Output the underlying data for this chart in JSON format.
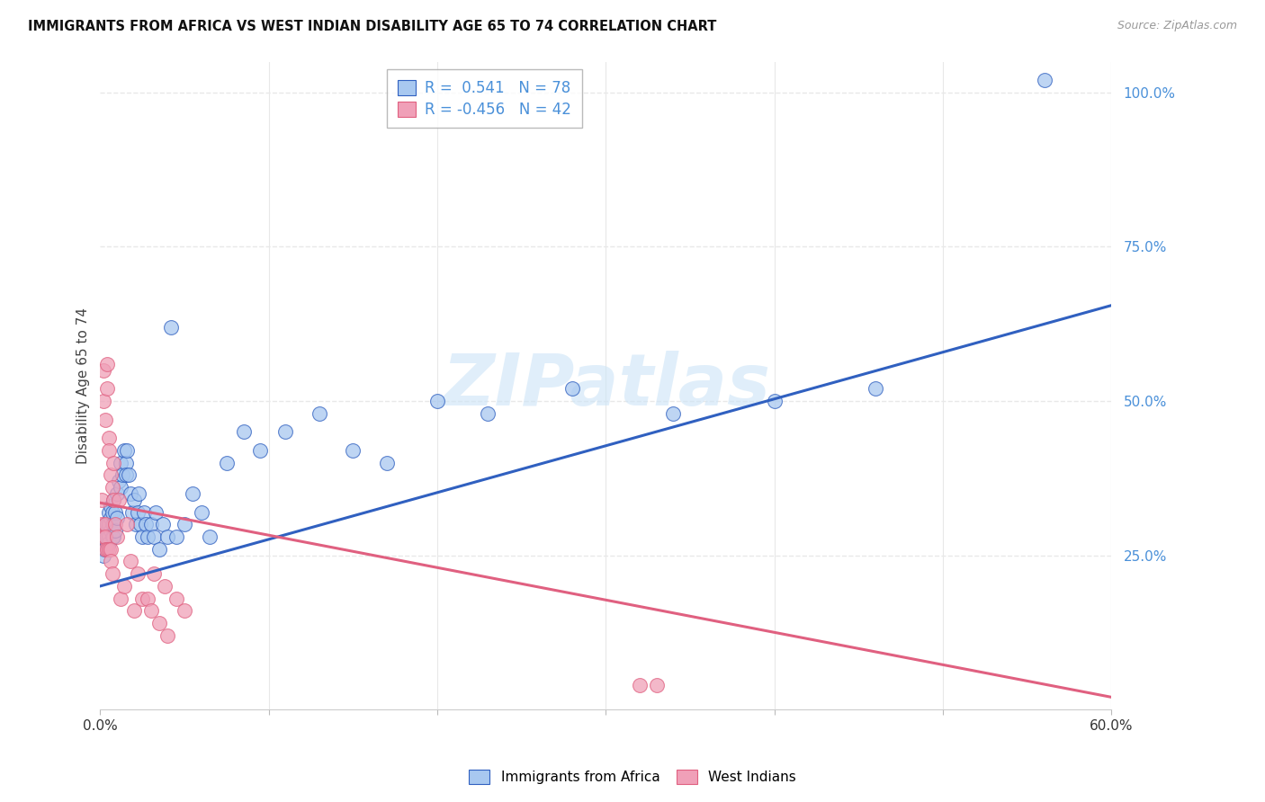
{
  "title": "IMMIGRANTS FROM AFRICA VS WEST INDIAN DISABILITY AGE 65 TO 74 CORRELATION CHART",
  "source": "Source: ZipAtlas.com",
  "ylabel": "Disability Age 65 to 74",
  "xlim": [
    0.0,
    0.6
  ],
  "ylim": [
    0.0,
    1.05
  ],
  "xticks": [
    0.0,
    0.1,
    0.2,
    0.3,
    0.4,
    0.5,
    0.6
  ],
  "xticklabels": [
    "0.0%",
    "",
    "",
    "",
    "",
    "",
    "60.0%"
  ],
  "yticks_right": [
    0.25,
    0.5,
    0.75,
    1.0
  ],
  "ytick_right_labels": [
    "25.0%",
    "50.0%",
    "75.0%",
    "100.0%"
  ],
  "blue_color": "#a8c8f0",
  "pink_color": "#f0a0b8",
  "blue_line_color": "#3060c0",
  "pink_line_color": "#e06080",
  "legend_blue_R": "0.541",
  "legend_blue_N": "78",
  "legend_pink_R": "-0.456",
  "legend_pink_N": "42",
  "legend_blue_label": "Immigrants from Africa",
  "legend_pink_label": "West Indians",
  "watermark_text": "ZIPatlas",
  "blue_scatter_x": [
    0.001,
    0.001,
    0.002,
    0.002,
    0.002,
    0.002,
    0.003,
    0.003,
    0.003,
    0.003,
    0.003,
    0.004,
    0.004,
    0.004,
    0.004,
    0.005,
    0.005,
    0.005,
    0.005,
    0.006,
    0.006,
    0.006,
    0.007,
    0.007,
    0.007,
    0.008,
    0.008,
    0.008,
    0.009,
    0.009,
    0.01,
    0.01,
    0.011,
    0.012,
    0.012,
    0.013,
    0.014,
    0.015,
    0.015,
    0.016,
    0.017,
    0.018,
    0.019,
    0.02,
    0.021,
    0.022,
    0.023,
    0.024,
    0.025,
    0.026,
    0.027,
    0.028,
    0.03,
    0.032,
    0.033,
    0.035,
    0.037,
    0.04,
    0.042,
    0.045,
    0.05,
    0.055,
    0.06,
    0.065,
    0.075,
    0.085,
    0.095,
    0.11,
    0.13,
    0.15,
    0.17,
    0.2,
    0.23,
    0.28,
    0.34,
    0.4,
    0.46,
    0.56
  ],
  "blue_scatter_y": [
    0.28,
    0.27,
    0.26,
    0.28,
    0.27,
    0.25,
    0.28,
    0.27,
    0.29,
    0.3,
    0.26,
    0.29,
    0.27,
    0.3,
    0.28,
    0.3,
    0.28,
    0.32,
    0.27,
    0.31,
    0.29,
    0.33,
    0.3,
    0.28,
    0.32,
    0.3,
    0.34,
    0.28,
    0.32,
    0.29,
    0.35,
    0.31,
    0.37,
    0.36,
    0.4,
    0.38,
    0.42,
    0.4,
    0.38,
    0.42,
    0.38,
    0.35,
    0.32,
    0.34,
    0.3,
    0.32,
    0.35,
    0.3,
    0.28,
    0.32,
    0.3,
    0.28,
    0.3,
    0.28,
    0.32,
    0.26,
    0.3,
    0.28,
    0.62,
    0.28,
    0.3,
    0.35,
    0.32,
    0.28,
    0.4,
    0.45,
    0.42,
    0.45,
    0.48,
    0.42,
    0.4,
    0.5,
    0.48,
    0.52,
    0.48,
    0.5,
    0.52,
    1.02
  ],
  "pink_scatter_x": [
    0.001,
    0.001,
    0.002,
    0.002,
    0.002,
    0.003,
    0.003,
    0.003,
    0.003,
    0.004,
    0.004,
    0.004,
    0.005,
    0.005,
    0.005,
    0.006,
    0.006,
    0.006,
    0.007,
    0.007,
    0.008,
    0.008,
    0.009,
    0.01,
    0.011,
    0.012,
    0.014,
    0.016,
    0.018,
    0.02,
    0.022,
    0.025,
    0.028,
    0.03,
    0.032,
    0.035,
    0.038,
    0.04,
    0.045,
    0.05,
    0.32,
    0.33
  ],
  "pink_scatter_y": [
    0.34,
    0.3,
    0.55,
    0.5,
    0.28,
    0.47,
    0.3,
    0.28,
    0.26,
    0.56,
    0.52,
    0.26,
    0.44,
    0.42,
    0.26,
    0.38,
    0.26,
    0.24,
    0.36,
    0.22,
    0.4,
    0.34,
    0.3,
    0.28,
    0.34,
    0.18,
    0.2,
    0.3,
    0.24,
    0.16,
    0.22,
    0.18,
    0.18,
    0.16,
    0.22,
    0.14,
    0.2,
    0.12,
    0.18,
    0.16,
    0.04,
    0.04
  ],
  "blue_line_x": [
    0.0,
    0.6
  ],
  "blue_line_y": [
    0.2,
    0.655
  ],
  "pink_line_x": [
    0.0,
    0.6
  ],
  "pink_line_y": [
    0.335,
    0.02
  ],
  "background_color": "#ffffff",
  "grid_color": "#e8e8e8",
  "axis_color": "#4a90d9",
  "ylabel_color": "#444444",
  "title_color": "#111111",
  "source_color": "#999999",
  "tick_label_color": "#333333"
}
